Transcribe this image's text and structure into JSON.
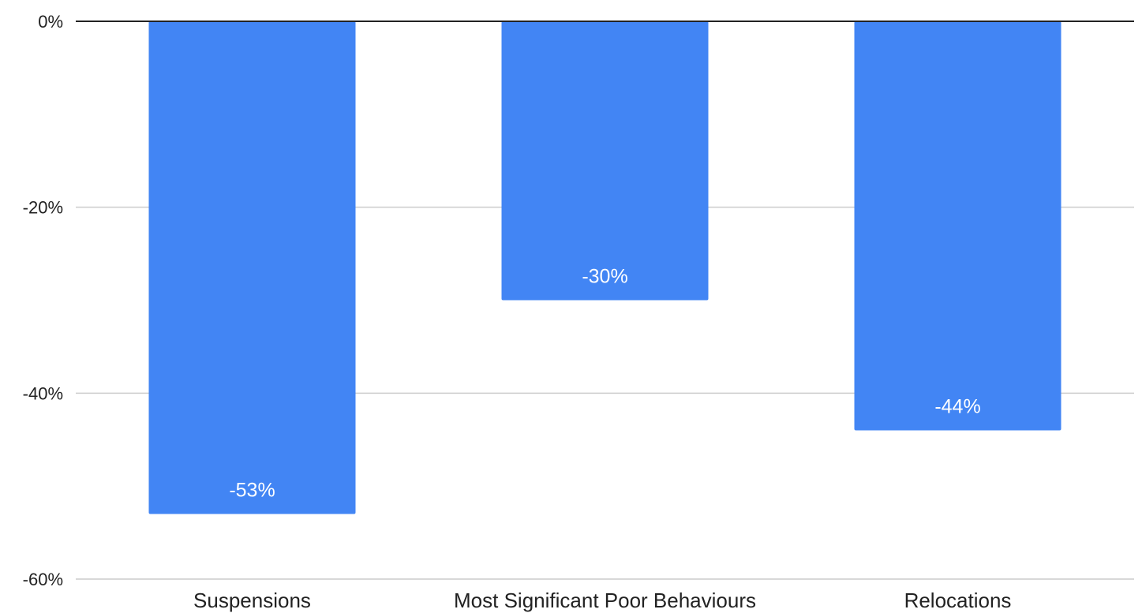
{
  "chart_data": {
    "type": "bar",
    "categories": [
      "Suspensions",
      "Most Significant Poor Behaviours",
      "Relocations"
    ],
    "values": [
      -53,
      -30,
      -44
    ],
    "data_labels": [
      "-53%",
      "-30%",
      "-44%"
    ],
    "y_ticks": [
      0,
      -20,
      -40,
      -60
    ],
    "y_tick_labels": [
      "0%",
      "-20%",
      "-40%",
      "-60%"
    ],
    "ylim": [
      -60,
      0
    ],
    "title": "",
    "xlabel": "",
    "ylabel": "",
    "grid": true,
    "legend": "none",
    "bar_color": "#4285f4",
    "gridline_color": "#cccccc",
    "axis_color": "#222222"
  }
}
